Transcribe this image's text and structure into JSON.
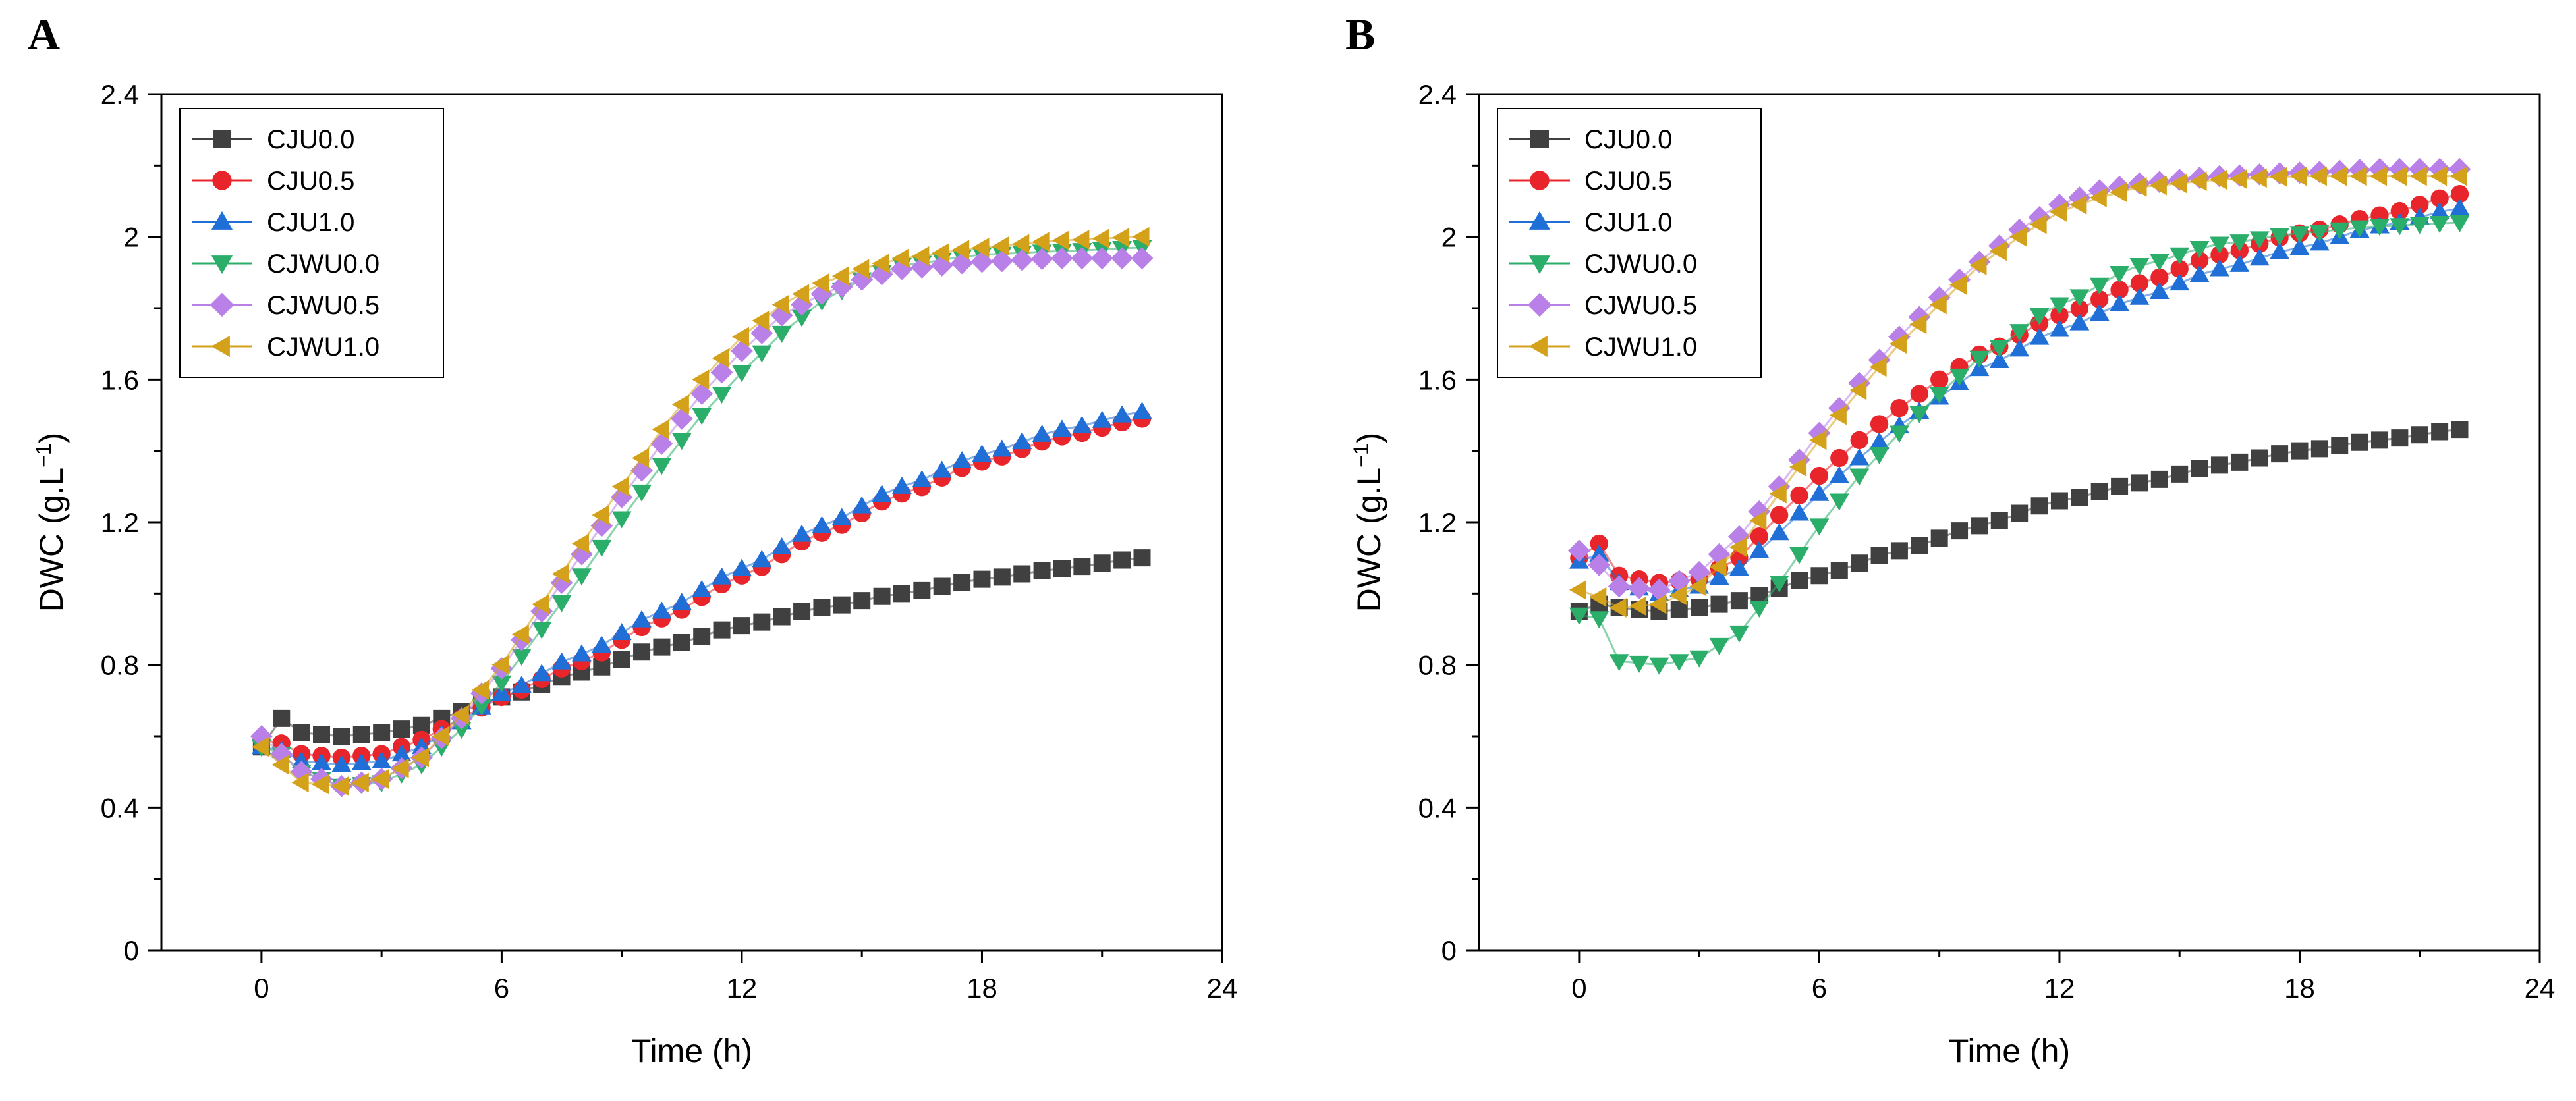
{
  "chart_data": [
    {
      "panel": "A",
      "type": "line",
      "xlabel": "Time (h)",
      "ylabel": "DWC (g.L",
      "ylabel_sup": "−1",
      "ylabel_close": ")",
      "xlim": [
        -2.5,
        24
      ],
      "ylim": [
        0,
        2.4
      ],
      "xticks": [
        "0",
        "6",
        "12",
        "18",
        "24"
      ],
      "yticks": [
        "0",
        "0.4",
        "0.8",
        "1.2",
        "1.6",
        "2",
        "2.4"
      ],
      "legend_position": "top-left",
      "series": [
        {
          "name": "CJU0.0",
          "color": "#404040",
          "marker": "square",
          "kp": [
            [
              0,
              0.57
            ],
            [
              0.5,
              0.65
            ],
            [
              1,
              0.61
            ],
            [
              2,
              0.6
            ],
            [
              3,
              0.61
            ],
            [
              4,
              0.63
            ],
            [
              5,
              0.67
            ],
            [
              6,
              0.71
            ],
            [
              8,
              0.78
            ],
            [
              10,
              0.85
            ],
            [
              12,
              0.91
            ],
            [
              14,
              0.96
            ],
            [
              16,
              1.0
            ],
            [
              18,
              1.04
            ],
            [
              20,
              1.07
            ],
            [
              22,
              1.1
            ]
          ]
        },
        {
          "name": "CJU0.5",
          "color": "#e8252b",
          "marker": "circle",
          "kp": [
            [
              0,
              0.59
            ],
            [
              0.5,
              0.58
            ],
            [
              1,
              0.55
            ],
            [
              2,
              0.54
            ],
            [
              3,
              0.55
            ],
            [
              4,
              0.59
            ],
            [
              5,
              0.65
            ],
            [
              6,
              0.71
            ],
            [
              8,
              0.81
            ],
            [
              10,
              0.93
            ],
            [
              12,
              1.05
            ],
            [
              14,
              1.17
            ],
            [
              16,
              1.28
            ],
            [
              18,
              1.37
            ],
            [
              20,
              1.44
            ],
            [
              22,
              1.49
            ]
          ]
        },
        {
          "name": "CJU1.0",
          "color": "#1f6fd6",
          "marker": "triangle-up",
          "kp": [
            [
              0,
              0.57
            ],
            [
              0.5,
              0.56
            ],
            [
              1,
              0.53
            ],
            [
              2,
              0.52
            ],
            [
              3,
              0.53
            ],
            [
              4,
              0.57
            ],
            [
              5,
              0.64
            ],
            [
              6,
              0.72
            ],
            [
              8,
              0.83
            ],
            [
              10,
              0.95
            ],
            [
              12,
              1.07
            ],
            [
              14,
              1.19
            ],
            [
              16,
              1.3
            ],
            [
              18,
              1.39
            ],
            [
              20,
              1.46
            ],
            [
              22,
              1.51
            ]
          ]
        },
        {
          "name": "CJWU0.0",
          "color": "#2cae6b",
          "marker": "triangle-down",
          "kp": [
            [
              0,
              0.57
            ],
            [
              0.5,
              0.55
            ],
            [
              1,
              0.5
            ],
            [
              2,
              0.46
            ],
            [
              3,
              0.47
            ],
            [
              4,
              0.52
            ],
            [
              5,
              0.62
            ],
            [
              6,
              0.75
            ],
            [
              7,
              0.9
            ],
            [
              8,
              1.05
            ],
            [
              9,
              1.21
            ],
            [
              10,
              1.36
            ],
            [
              11,
              1.5
            ],
            [
              12,
              1.62
            ],
            [
              13,
              1.73
            ],
            [
              14,
              1.82
            ],
            [
              15,
              1.88
            ],
            [
              16,
              1.92
            ],
            [
              18,
              1.95
            ],
            [
              20,
              1.96
            ],
            [
              22,
              1.97
            ]
          ]
        },
        {
          "name": "CJWU0.5",
          "color": "#b980e8",
          "marker": "diamond",
          "kp": [
            [
              0,
              0.6
            ],
            [
              0.5,
              0.55
            ],
            [
              1,
              0.5
            ],
            [
              2,
              0.46
            ],
            [
              3,
              0.48
            ],
            [
              4,
              0.54
            ],
            [
              5,
              0.65
            ],
            [
              6,
              0.79
            ],
            [
              7,
              0.95
            ],
            [
              8,
              1.11
            ],
            [
              9,
              1.27
            ],
            [
              10,
              1.42
            ],
            [
              11,
              1.56
            ],
            [
              12,
              1.68
            ],
            [
              13,
              1.78
            ],
            [
              14,
              1.84
            ],
            [
              15,
              1.88
            ],
            [
              16,
              1.91
            ],
            [
              18,
              1.93
            ],
            [
              20,
              1.94
            ],
            [
              22,
              1.94
            ]
          ]
        },
        {
          "name": "CJWU1.0",
          "color": "#d4a21a",
          "marker": "triangle-left",
          "kp": [
            [
              0,
              0.57
            ],
            [
              0.5,
              0.52
            ],
            [
              1,
              0.47
            ],
            [
              2,
              0.46
            ],
            [
              3,
              0.48
            ],
            [
              4,
              0.54
            ],
            [
              5,
              0.66
            ],
            [
              6,
              0.8
            ],
            [
              7,
              0.97
            ],
            [
              8,
              1.14
            ],
            [
              9,
              1.3
            ],
            [
              10,
              1.46
            ],
            [
              11,
              1.6
            ],
            [
              12,
              1.72
            ],
            [
              13,
              1.81
            ],
            [
              14,
              1.87
            ],
            [
              15,
              1.91
            ],
            [
              16,
              1.94
            ],
            [
              18,
              1.97
            ],
            [
              20,
              1.99
            ],
            [
              22,
              2.0
            ]
          ]
        }
      ]
    },
    {
      "panel": "B",
      "type": "line",
      "xlabel": "Time (h)",
      "ylabel": "DWC (g.L",
      "ylabel_sup": "−1",
      "ylabel_close": ")",
      "xlim": [
        -2.5,
        24
      ],
      "ylim": [
        0,
        2.4
      ],
      "xticks": [
        "0",
        "6",
        "12",
        "18",
        "24"
      ],
      "yticks": [
        "0",
        "0.4",
        "0.8",
        "1.2",
        "1.6",
        "2",
        "2.4"
      ],
      "legend_position": "top-left",
      "series": [
        {
          "name": "CJU0.0",
          "color": "#404040",
          "marker": "square",
          "kp": [
            [
              0,
              0.95
            ],
            [
              0.5,
              0.97
            ],
            [
              1,
              0.96
            ],
            [
              2,
              0.95
            ],
            [
              3,
              0.96
            ],
            [
              4,
              0.98
            ],
            [
              6,
              1.05
            ],
            [
              8,
              1.12
            ],
            [
              10,
              1.19
            ],
            [
              12,
              1.26
            ],
            [
              14,
              1.31
            ],
            [
              16,
              1.36
            ],
            [
              18,
              1.4
            ],
            [
              20,
              1.43
            ],
            [
              22,
              1.46
            ]
          ]
        },
        {
          "name": "CJU0.5",
          "color": "#e8252b",
          "marker": "circle",
          "kp": [
            [
              0,
              1.1
            ],
            [
              0.5,
              1.14
            ],
            [
              1,
              1.05
            ],
            [
              2,
              1.03
            ],
            [
              3,
              1.04
            ],
            [
              4,
              1.1
            ],
            [
              5,
              1.22
            ],
            [
              6,
              1.33
            ],
            [
              7,
              1.43
            ],
            [
              8,
              1.52
            ],
            [
              9,
              1.6
            ],
            [
              10,
              1.67
            ],
            [
              12,
              1.78
            ],
            [
              14,
              1.87
            ],
            [
              16,
              1.95
            ],
            [
              18,
              2.01
            ],
            [
              20,
              2.06
            ],
            [
              22,
              2.12
            ]
          ]
        },
        {
          "name": "CJU1.0",
          "color": "#1f6fd6",
          "marker": "triangle-up",
          "kp": [
            [
              0,
              1.09
            ],
            [
              0.5,
              1.11
            ],
            [
              1,
              1.03
            ],
            [
              2,
              1.0
            ],
            [
              3,
              1.02
            ],
            [
              4,
              1.07
            ],
            [
              5,
              1.17
            ],
            [
              6,
              1.28
            ],
            [
              7,
              1.38
            ],
            [
              8,
              1.47
            ],
            [
              9,
              1.55
            ],
            [
              10,
              1.63
            ],
            [
              12,
              1.74
            ],
            [
              14,
              1.83
            ],
            [
              16,
              1.91
            ],
            [
              18,
              1.97
            ],
            [
              20,
              2.03
            ],
            [
              22,
              2.08
            ]
          ]
        },
        {
          "name": "CJWU0.0",
          "color": "#2cae6b",
          "marker": "triangle-down",
          "kp": [
            [
              0,
              0.94
            ],
            [
              0.5,
              0.93
            ],
            [
              1,
              0.81
            ],
            [
              2,
              0.8
            ],
            [
              3,
              0.82
            ],
            [
              4,
              0.89
            ],
            [
              5,
              1.03
            ],
            [
              6,
              1.19
            ],
            [
              7,
              1.33
            ],
            [
              8,
              1.45
            ],
            [
              9,
              1.56
            ],
            [
              10,
              1.66
            ],
            [
              12,
              1.81
            ],
            [
              14,
              1.92
            ],
            [
              16,
              1.98
            ],
            [
              18,
              2.01
            ],
            [
              20,
              2.03
            ],
            [
              22,
              2.04
            ]
          ]
        },
        {
          "name": "CJWU0.5",
          "color": "#b980e8",
          "marker": "diamond",
          "kp": [
            [
              0,
              1.12
            ],
            [
              0.5,
              1.08
            ],
            [
              1,
              1.02
            ],
            [
              2,
              1.01
            ],
            [
              3,
              1.06
            ],
            [
              4,
              1.16
            ],
            [
              5,
              1.3
            ],
            [
              6,
              1.45
            ],
            [
              7,
              1.59
            ],
            [
              8,
              1.72
            ],
            [
              9,
              1.83
            ],
            [
              10,
              1.93
            ],
            [
              11,
              2.02
            ],
            [
              12,
              2.09
            ],
            [
              13,
              2.13
            ],
            [
              14,
              2.15
            ],
            [
              16,
              2.17
            ],
            [
              18,
              2.18
            ],
            [
              20,
              2.19
            ],
            [
              22,
              2.19
            ]
          ]
        },
        {
          "name": "CJWU1.0",
          "color": "#d4a21a",
          "marker": "triangle-left",
          "kp": [
            [
              0,
              1.01
            ],
            [
              0.5,
              0.99
            ],
            [
              1,
              0.96
            ],
            [
              2,
              0.97
            ],
            [
              3,
              1.02
            ],
            [
              4,
              1.13
            ],
            [
              5,
              1.28
            ],
            [
              6,
              1.43
            ],
            [
              7,
              1.57
            ],
            [
              8,
              1.7
            ],
            [
              9,
              1.81
            ],
            [
              10,
              1.92
            ],
            [
              11,
              2.0
            ],
            [
              12,
              2.07
            ],
            [
              13,
              2.11
            ],
            [
              14,
              2.14
            ],
            [
              16,
              2.16
            ],
            [
              18,
              2.17
            ],
            [
              20,
              2.17
            ],
            [
              22,
              2.17
            ]
          ]
        }
      ]
    }
  ]
}
